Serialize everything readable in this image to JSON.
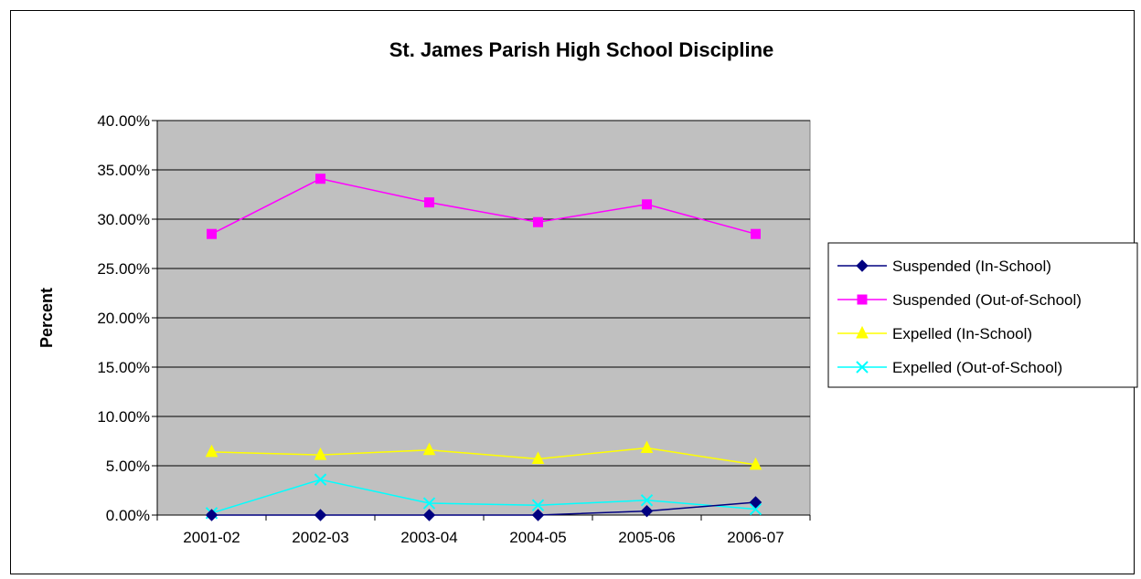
{
  "chart_data": {
    "type": "line",
    "title": "St. James Parish High School Discipline",
    "xlabel": "",
    "ylabel": "Percent",
    "categories": [
      "2001-02",
      "2002-03",
      "2003-04",
      "2004-05",
      "2005-06",
      "2006-07"
    ],
    "ylim": [
      0,
      40
    ],
    "yticks": [
      "0.00%",
      "5.00%",
      "10.00%",
      "15.00%",
      "20.00%",
      "25.00%",
      "30.00%",
      "35.00%",
      "40.00%"
    ],
    "ytick_values": [
      0,
      5,
      10,
      15,
      20,
      25,
      30,
      35,
      40
    ],
    "grid": "horizontal",
    "legend_position": "right",
    "plot_background": "#c0c0c0",
    "series": [
      {
        "name": "Suspended (In-School)",
        "color": "#000080",
        "marker": "diamond",
        "values": [
          0.0,
          0.0,
          0.0,
          0.0,
          0.4,
          1.3
        ]
      },
      {
        "name": "Suspended (Out-of-School)",
        "color": "#ff00ff",
        "marker": "square",
        "values": [
          28.5,
          34.1,
          31.7,
          29.7,
          31.5,
          28.5
        ]
      },
      {
        "name": "Expelled (In-School)",
        "color": "#ffff00",
        "marker": "triangle",
        "values": [
          6.4,
          6.1,
          6.6,
          5.7,
          6.8,
          5.1
        ]
      },
      {
        "name": "Expelled (Out-of-School)",
        "color": "#00ffff",
        "marker": "x",
        "values": [
          0.2,
          3.6,
          1.2,
          1.0,
          1.5,
          0.6
        ]
      }
    ]
  }
}
